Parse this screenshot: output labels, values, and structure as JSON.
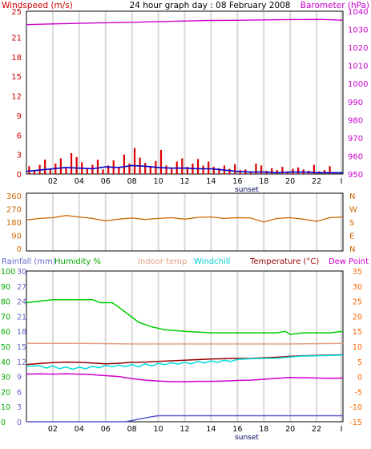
{
  "title": "24 hour graph day : 08 February 2008",
  "sunset_label": "sunset",
  "colors": {
    "grid": "#d9d9d9",
    "frame": "#000000",
    "wind_label": "#cc0000",
    "baro_label": "#cc00cc",
    "dir_label": "#cc6600",
    "rain_label": "#6666cc",
    "humidity_label": "#00aa00",
    "indoor_label": "#e0a080",
    "windchill_label": "#00cccc",
    "temp_label": "#990000",
    "dew_label": "#cc00cc",
    "temp_axis": "#ff6600",
    "rain_axis": "#6666cc",
    "humidity_axis": "#00aa00"
  },
  "x_ticks": [
    "02",
    "04",
    "06",
    "08",
    "10",
    "12",
    "14",
    "16",
    "18",
    "20",
    "22",
    "I"
  ],
  "chart_data": [
    {
      "type": "bar",
      "panel": "wind_barometer",
      "title": "24 hour graph day : 08 February 2008",
      "left_axis_label": "Windspeed (m/s)",
      "right_axis_label": "Barometer (hPa)",
      "left_ticks": [
        "0",
        "3",
        "6",
        "9",
        "12",
        "15",
        "18",
        "21",
        "25"
      ],
      "left_ylim": [
        0,
        25
      ],
      "right_ticks": [
        "950",
        "960",
        "970",
        "980",
        "990",
        "1000",
        "1010",
        "1020",
        "1030",
        "1040"
      ],
      "right_ylim": [
        950,
        1040
      ],
      "xlim": [
        0,
        24
      ],
      "series": [
        {
          "name": "Windspeed (m/s)",
          "kind": "bar",
          "color": "#dd0000",
          "x": [
            0.2,
            0.6,
            1.0,
            1.4,
            1.8,
            2.2,
            2.6,
            3.0,
            3.4,
            3.8,
            4.2,
            4.6,
            5.0,
            5.4,
            5.8,
            6.2,
            6.6,
            7.0,
            7.4,
            7.8,
            8.2,
            8.6,
            9.0,
            9.4,
            9.8,
            10.2,
            10.6,
            11.0,
            11.4,
            11.8,
            12.2,
            12.6,
            13.0,
            13.4,
            13.8,
            14.2,
            14.6,
            15.0,
            15.4,
            15.8,
            16.2,
            16.6,
            17.0,
            17.4,
            17.8,
            18.2,
            18.6,
            19.0,
            19.4,
            19.8,
            20.2,
            20.6,
            21.0,
            21.4,
            21.8,
            22.2,
            22.6,
            23.0,
            23.4
          ],
          "values": [
            1.2,
            0.6,
            1.4,
            2.2,
            0.8,
            1.6,
            2.4,
            1.0,
            3.2,
            2.6,
            1.8,
            0.9,
            1.4,
            2.2,
            0.7,
            1.3,
            2.1,
            1.1,
            3.0,
            1.6,
            4.0,
            2.5,
            1.7,
            1.2,
            2.0,
            3.7,
            1.3,
            0.8,
            1.9,
            2.4,
            1.1,
            1.6,
            2.3,
            1.3,
            1.9,
            1.1,
            0.9,
            1.3,
            0.8,
            1.5,
            0.6,
            0.7,
            0.4,
            1.6,
            1.3,
            0.5,
            0.9,
            0.6,
            1.1,
            0.4,
            0.8,
            1.0,
            0.7,
            0.5,
            1.4,
            0.4,
            0.6,
            1.2,
            0.3
          ]
        },
        {
          "name": "Windspeed average",
          "kind": "line",
          "color": "#0000cc",
          "x": [
            0,
            1,
            2,
            3,
            4,
            5,
            6,
            7,
            8,
            9,
            10,
            11,
            12,
            13,
            14,
            15,
            16,
            17,
            18,
            19,
            20,
            21,
            22,
            23,
            24
          ],
          "values": [
            0.4,
            0.6,
            0.8,
            1.0,
            0.9,
            0.8,
            1.1,
            1.0,
            1.3,
            1.2,
            1.0,
            0.9,
            0.9,
            0.8,
            0.8,
            0.6,
            0.4,
            0.3,
            0.3,
            0.2,
            0.3,
            0.3,
            0.2,
            0.2,
            0.2
          ]
        },
        {
          "name": "Barometer (hPa)",
          "kind": "line",
          "color": "#cc00cc",
          "x": [
            0,
            2,
            4,
            6,
            8,
            10,
            12,
            14,
            16,
            18,
            20,
            22,
            23,
            24
          ],
          "values": [
            1032.6,
            1033.0,
            1033.3,
            1033.6,
            1033.9,
            1034.3,
            1034.6,
            1034.9,
            1035.0,
            1035.2,
            1035.4,
            1035.5,
            1035.3,
            1035.0
          ]
        }
      ]
    },
    {
      "type": "line",
      "panel": "wind_direction",
      "left_ticks": [
        "0",
        "90",
        "180",
        "270",
        "360"
      ],
      "right_ticks": [
        "N",
        "E",
        "S",
        "W",
        "N"
      ],
      "ylim": [
        0,
        360
      ],
      "xlim": [
        0,
        24
      ],
      "series": [
        {
          "name": "Wind direction",
          "color": "#cc6600",
          "x": [
            0,
            1,
            2,
            3,
            4,
            5,
            6,
            7,
            8,
            9,
            10,
            11,
            12,
            13,
            14,
            15,
            16,
            17,
            18,
            19,
            20,
            21,
            22,
            23,
            24
          ],
          "values": [
            195,
            205,
            210,
            225,
            215,
            205,
            188,
            200,
            208,
            198,
            205,
            210,
            200,
            212,
            215,
            205,
            210,
            208,
            180,
            205,
            210,
            200,
            185,
            210,
            215
          ]
        }
      ]
    },
    {
      "type": "line",
      "panel": "temperature_humidity_rain",
      "legend": [
        "Rainfall (mm)",
        "Humidity %",
        "Indoor temp",
        "Windchill",
        "Temperature (°C)",
        "Dew Point"
      ],
      "rain_ticks": [
        "0",
        "3",
        "6",
        "9",
        "12",
        "15",
        "18",
        "21",
        "24",
        "27",
        "30"
      ],
      "humidity_ticks": [
        "0",
        "10",
        "20",
        "30",
        "40",
        "50",
        "60",
        "70",
        "80",
        "90",
        "100"
      ],
      "temp_ticks": [
        "-15",
        "-10",
        "-5",
        "0",
        "5",
        "10",
        "15",
        "20",
        "25",
        "30",
        "35"
      ],
      "temp_ylim": [
        -15,
        35
      ],
      "xlim": [
        0,
        24
      ],
      "series": [
        {
          "name": "Humidity %",
          "color": "#00cc00",
          "x": [
            0,
            1,
            2,
            3,
            4,
            5,
            5.6,
            6.5,
            7.0,
            7.6,
            8.5,
            9.5,
            10.5,
            12,
            14,
            16,
            17,
            18,
            19,
            19.6,
            20,
            21,
            22,
            23,
            24
          ],
          "values": [
            79,
            80,
            81,
            81,
            81,
            81,
            79,
            79,
            76,
            72,
            66,
            63,
            61,
            60,
            59,
            59,
            59,
            59,
            59,
            60,
            58,
            59,
            59,
            59,
            60
          ]
        },
        {
          "name": "Indoor temp",
          "color": "#e0a080",
          "x": [
            0,
            4,
            8,
            12,
            16,
            20,
            24
          ],
          "values": [
            11.0,
            11.0,
            10.8,
            10.8,
            10.8,
            10.8,
            11.0
          ]
        },
        {
          "name": "Temperature (°C)",
          "color": "#990000",
          "x": [
            0,
            1,
            2,
            3,
            4,
            5,
            6,
            7,
            8,
            9,
            10,
            11,
            12,
            13,
            14,
            15,
            16,
            17,
            18,
            19,
            20,
            21,
            22,
            23,
            24
          ],
          "values": [
            4.0,
            4.3,
            4.6,
            4.8,
            4.7,
            4.5,
            4.2,
            4.4,
            4.7,
            4.8,
            5.0,
            5.2,
            5.4,
            5.6,
            5.8,
            5.9,
            6.0,
            6.0,
            6.2,
            6.4,
            6.7,
            6.9,
            7.0,
            7.1,
            7.2
          ]
        },
        {
          "name": "Windchill",
          "color": "#00dddd",
          "x": [
            0,
            1,
            1.5,
            2,
            2.5,
            3,
            3.5,
            4,
            4.5,
            5,
            5.5,
            6,
            6.5,
            7,
            7.5,
            8,
            8.5,
            9,
            9.5,
            10,
            10.5,
            11,
            11.5,
            12,
            12.5,
            13,
            13.5,
            14,
            14.5,
            15,
            15.5,
            16,
            17,
            18,
            19,
            20,
            21,
            22,
            23,
            24
          ],
          "values": [
            3.4,
            3.6,
            2.8,
            3.5,
            2.6,
            3.2,
            2.4,
            3.1,
            2.6,
            3.4,
            2.9,
            3.7,
            3.2,
            3.8,
            3.3,
            4.0,
            3.2,
            4.2,
            3.5,
            4.4,
            3.9,
            4.6,
            4.1,
            4.8,
            4.2,
            5.0,
            4.5,
            5.2,
            4.7,
            5.4,
            5.0,
            5.7,
            5.9,
            6.0,
            6.1,
            6.5,
            6.8,
            6.9,
            7.0,
            7.1
          ]
        },
        {
          "name": "Dew Point",
          "color": "#cc00cc",
          "x": [
            0,
            1,
            2,
            3,
            4,
            5,
            6,
            7,
            8,
            9,
            10,
            11,
            12,
            13,
            14,
            15,
            16,
            17,
            18,
            19,
            20,
            21,
            22,
            23,
            24
          ],
          "values": [
            0.8,
            0.9,
            0.8,
            0.9,
            0.8,
            0.6,
            0.3,
            0.0,
            -0.7,
            -1.2,
            -1.5,
            -1.7,
            -1.7,
            -1.6,
            -1.6,
            -1.5,
            -1.3,
            -1.2,
            -0.9,
            -0.6,
            -0.3,
            -0.4,
            -0.5,
            -0.6,
            -0.5
          ]
        },
        {
          "name": "Rainfall (mm)",
          "color": "#5555cc",
          "x": [
            0,
            4,
            7.5,
            8.5,
            9.5,
            10,
            12,
            16,
            20,
            24
          ],
          "values": [
            0,
            0,
            0,
            0.5,
            1.0,
            1.2,
            1.2,
            1.2,
            1.2,
            1.2
          ]
        }
      ]
    }
  ]
}
